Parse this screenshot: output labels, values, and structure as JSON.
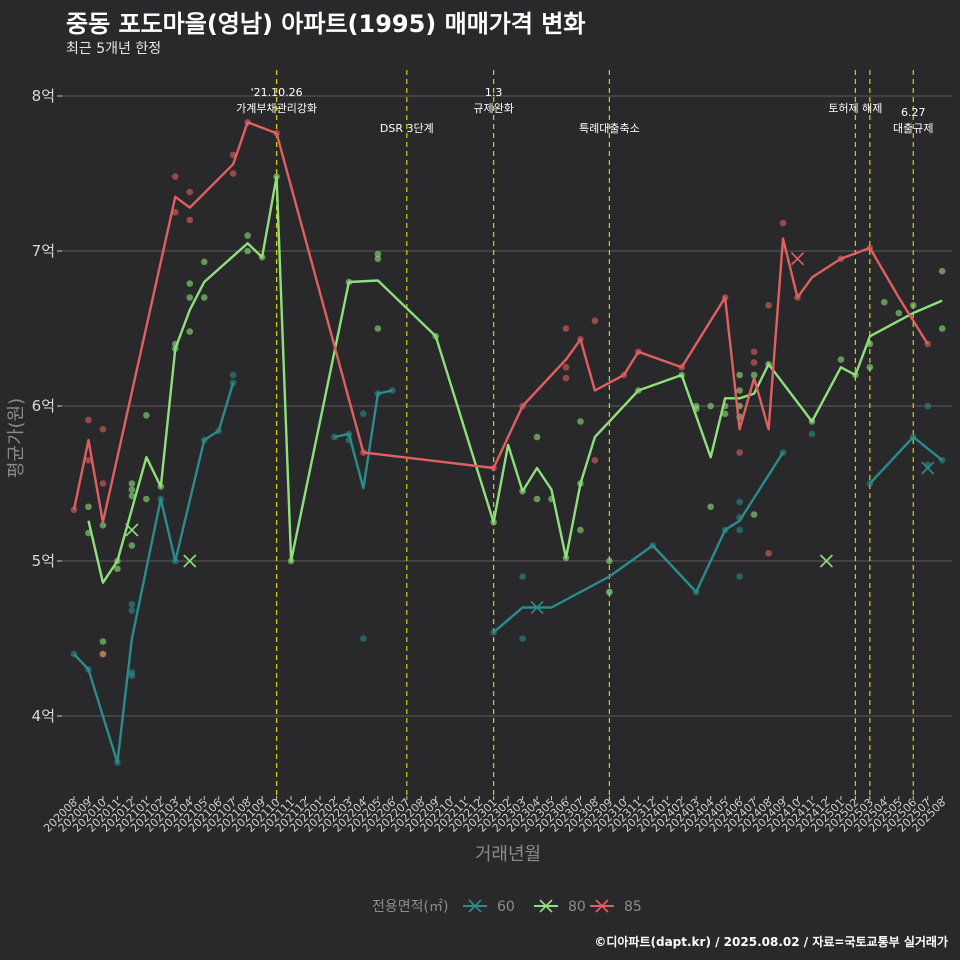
{
  "header": {
    "title": "중동 포도마을(영남) 아파트(1995) 매매가격 변화",
    "subtitle": "최근 5개년 한정"
  },
  "caption": "©디아파트(dapt.kr) / 2025.08.02 / 자료=국토교통부 실거래가",
  "colors": {
    "background": "#29292b",
    "grid": "#5a5a5a",
    "event_line": "#d4d400",
    "series_60": "#2a8c8c",
    "series_80": "#8ee07a",
    "series_85": "#e06060"
  },
  "chart_data": {
    "type": "line",
    "xlabel": "거래년월",
    "ylabel": "평균가(원)",
    "ylim": [
      3.5,
      8.1
    ],
    "y_ticks": [
      {
        "value": 4,
        "label": "4억"
      },
      {
        "value": 5,
        "label": "5억"
      },
      {
        "value": 6,
        "label": "6억"
      },
      {
        "value": 7,
        "label": "7억"
      },
      {
        "value": 8,
        "label": "8억"
      }
    ],
    "categories": [
      "202008",
      "202009",
      "202010",
      "202011",
      "202012",
      "202101",
      "202102",
      "202103",
      "202104",
      "202105",
      "202106",
      "202107",
      "202108",
      "202109",
      "202110",
      "202111",
      "202112",
      "202201",
      "202202",
      "202203",
      "202204",
      "202205",
      "202206",
      "202207",
      "202208",
      "202209",
      "202210",
      "202211",
      "202212",
      "202301",
      "202302",
      "202303",
      "202304",
      "202305",
      "202306",
      "202307",
      "202308",
      "202309",
      "202310",
      "202311",
      "202312",
      "202401",
      "202402",
      "202403",
      "202404",
      "202405",
      "202406",
      "202407",
      "202408",
      "202409",
      "202410",
      "202411",
      "202412",
      "202501",
      "202502",
      "202503",
      "202504",
      "202505",
      "202506",
      "202507",
      "202508"
    ],
    "legend_title": "전용면적(㎡)",
    "legend_position": "bottom",
    "events": [
      {
        "x": 14,
        "label_lines": [
          "'21.10.26",
          "가계부채관리강화"
        ],
        "label_row": 0
      },
      {
        "x": 23,
        "label_lines": [
          "DSR 3단계"
        ],
        "label_row": 1
      },
      {
        "x": 29,
        "label_lines": [
          "1.3",
          "규제완화"
        ],
        "label_row": 0
      },
      {
        "x": 37,
        "label_lines": [
          "특례대출축소"
        ],
        "label_row": 1
      },
      {
        "x": 54,
        "label_lines": [
          "토허제 해제"
        ],
        "label_row": 0
      },
      {
        "x": 55,
        "label_lines": [],
        "label_row": 0
      },
      {
        "x": 58,
        "label_lines": [
          "6.27",
          "대출규제"
        ],
        "label_row": 1
      }
    ],
    "series": [
      {
        "name": "60",
        "color": "#2a8c8c",
        "line": [
          [
            0,
            4.4
          ],
          [
            1,
            4.3
          ],
          [
            2,
            4.0
          ],
          [
            3,
            3.7
          ],
          [
            4,
            4.5
          ],
          [
            6,
            5.4
          ],
          [
            7,
            5.0
          ],
          [
            9,
            5.78
          ],
          [
            10,
            5.84
          ],
          [
            11,
            6.15
          ],
          [
            null,
            null
          ],
          [
            18,
            5.8
          ],
          [
            19,
            5.82
          ],
          [
            20,
            5.47
          ],
          [
            21,
            6.08
          ],
          [
            22,
            6.1
          ],
          [
            null,
            null
          ],
          [
            29,
            4.54
          ],
          [
            31,
            4.7
          ],
          [
            33,
            4.7
          ],
          [
            37,
            4.9
          ],
          [
            40,
            5.1
          ],
          [
            43,
            4.8
          ],
          [
            45,
            5.2
          ],
          [
            46,
            5.26
          ],
          [
            49,
            5.7
          ],
          [
            null,
            null
          ],
          [
            55,
            5.5
          ],
          [
            58,
            5.8
          ],
          [
            60,
            5.65
          ]
        ],
        "points": [
          [
            0,
            4.4
          ],
          [
            1,
            4.3
          ],
          [
            3,
            3.7
          ],
          [
            4,
            4.68
          ],
          [
            4,
            4.72
          ],
          [
            4,
            4.28
          ],
          [
            4,
            4.26
          ],
          [
            6,
            5.4
          ],
          [
            7,
            5.0
          ],
          [
            9,
            5.78
          ],
          [
            10,
            5.84
          ],
          [
            11,
            6.15
          ],
          [
            11,
            6.2
          ],
          [
            18,
            5.8
          ],
          [
            19,
            5.82
          ],
          [
            19,
            5.78
          ],
          [
            20,
            4.5
          ],
          [
            20,
            5.95
          ],
          [
            21,
            6.08
          ],
          [
            22,
            6.1
          ],
          [
            29,
            4.54
          ],
          [
            31,
            4.9
          ],
          [
            31,
            4.5
          ],
          [
            37,
            4.8
          ],
          [
            40,
            5.1
          ],
          [
            43,
            4.8
          ],
          [
            45,
            5.2
          ],
          [
            46,
            5.2
          ],
          [
            46,
            5.28
          ],
          [
            46,
            5.38
          ],
          [
            46,
            4.9
          ],
          [
            49,
            5.7
          ],
          [
            51,
            5.82
          ],
          [
            55,
            5.5
          ],
          [
            58,
            5.8
          ],
          [
            59,
            6.0
          ],
          [
            59,
            5.62
          ],
          [
            60,
            5.65
          ]
        ],
        "crosses": [
          [
            32,
            4.7
          ],
          [
            59,
            5.6
          ]
        ]
      },
      {
        "name": "80",
        "color": "#8ee07a",
        "line": [
          [
            1,
            5.26
          ],
          [
            2,
            4.86
          ],
          [
            3,
            5.0
          ],
          [
            5,
            5.67
          ],
          [
            6,
            5.48
          ],
          [
            7,
            6.37
          ],
          [
            8,
            6.62
          ],
          [
            9,
            6.8
          ],
          [
            12,
            7.05
          ],
          [
            13,
            6.96
          ],
          [
            14,
            7.48
          ],
          [
            15,
            5.0
          ],
          [
            19,
            6.8
          ],
          [
            21,
            6.81
          ],
          [
            25,
            6.45
          ],
          [
            29,
            5.25
          ],
          [
            30,
            5.75
          ],
          [
            31,
            5.45
          ],
          [
            32,
            5.6
          ],
          [
            33,
            5.46
          ],
          [
            34,
            5.02
          ],
          [
            35,
            5.5
          ],
          [
            36,
            5.8
          ],
          [
            39,
            6.1
          ],
          [
            42,
            6.2
          ],
          [
            44,
            5.67
          ],
          [
            45,
            6.05
          ],
          [
            46,
            6.05
          ],
          [
            47,
            6.08
          ],
          [
            48,
            6.27
          ],
          [
            51,
            5.9
          ],
          [
            53,
            6.25
          ],
          [
            54,
            6.2
          ],
          [
            55,
            6.45
          ],
          [
            58,
            6.6
          ],
          [
            60,
            6.68
          ]
        ],
        "points": [
          [
            1,
            5.35
          ],
          [
            1,
            5.18
          ],
          [
            2,
            5.23
          ],
          [
            2,
            4.48
          ],
          [
            2,
            4.4
          ],
          [
            3,
            4.95
          ],
          [
            3,
            5.0
          ],
          [
            4,
            5.5
          ],
          [
            4,
            5.46
          ],
          [
            4,
            5.42
          ],
          [
            4,
            5.1
          ],
          [
            5,
            5.4
          ],
          [
            5,
            5.94
          ],
          [
            6,
            5.48
          ],
          [
            7,
            6.4
          ],
          [
            7,
            6.37
          ],
          [
            8,
            6.7
          ],
          [
            8,
            6.48
          ],
          [
            8,
            6.79
          ],
          [
            9,
            6.93
          ],
          [
            9,
            6.7
          ],
          [
            12,
            7.1
          ],
          [
            12,
            7.0
          ],
          [
            13,
            6.96
          ],
          [
            14,
            7.48
          ],
          [
            15,
            5.0
          ],
          [
            19,
            6.8
          ],
          [
            21,
            6.98
          ],
          [
            21,
            6.95
          ],
          [
            21,
            6.5
          ],
          [
            25,
            6.45
          ],
          [
            29,
            5.25
          ],
          [
            31,
            5.45
          ],
          [
            32,
            5.8
          ],
          [
            32,
            5.4
          ],
          [
            33,
            5.4
          ],
          [
            34,
            5.02
          ],
          [
            35,
            5.5
          ],
          [
            35,
            5.9
          ],
          [
            35,
            5.2
          ],
          [
            37,
            5.0
          ],
          [
            37,
            4.8
          ],
          [
            39,
            6.1
          ],
          [
            42,
            6.2
          ],
          [
            43,
            6.0
          ],
          [
            43,
            5.98
          ],
          [
            44,
            6.0
          ],
          [
            44,
            5.35
          ],
          [
            45,
            6.0
          ],
          [
            45,
            5.95
          ],
          [
            46,
            6.2
          ],
          [
            46,
            6.0
          ],
          [
            46,
            5.93
          ],
          [
            46,
            6.1
          ],
          [
            47,
            6.2
          ],
          [
            47,
            5.3
          ],
          [
            48,
            6.27
          ],
          [
            51,
            5.9
          ],
          [
            53,
            6.3
          ],
          [
            54,
            6.2
          ],
          [
            55,
            6.4
          ],
          [
            55,
            6.25
          ],
          [
            56,
            6.67
          ],
          [
            57,
            6.6
          ],
          [
            58,
            6.65
          ],
          [
            60,
            6.87
          ],
          [
            60,
            6.5
          ]
        ],
        "crosses": [
          [
            4,
            5.2
          ],
          [
            8,
            5.0
          ],
          [
            52,
            5.0
          ]
        ]
      },
      {
        "name": "85",
        "color": "#e06060",
        "line": [
          [
            0,
            5.33
          ],
          [
            1,
            5.78
          ],
          [
            2,
            5.25
          ],
          [
            7,
            7.35
          ],
          [
            8,
            7.28
          ],
          [
            11,
            7.56
          ],
          [
            12,
            7.83
          ],
          [
            14,
            7.76
          ],
          [
            20,
            5.7
          ],
          [
            29,
            5.6
          ],
          [
            31,
            6.0
          ],
          [
            34,
            6.3
          ],
          [
            35,
            6.43
          ],
          [
            36,
            6.1
          ],
          [
            38,
            6.2
          ],
          [
            39,
            6.35
          ],
          [
            42,
            6.25
          ],
          [
            45,
            6.7
          ],
          [
            46,
            5.85
          ],
          [
            47,
            6.18
          ],
          [
            48,
            5.85
          ],
          [
            49,
            7.08
          ],
          [
            50,
            6.7
          ],
          [
            51,
            6.83
          ],
          [
            53,
            6.95
          ],
          [
            55,
            7.02
          ],
          [
            57,
            6.7
          ],
          [
            59,
            6.4
          ]
        ],
        "points": [
          [
            0,
            5.33
          ],
          [
            1,
            5.91
          ],
          [
            1,
            5.65
          ],
          [
            2,
            5.85
          ],
          [
            2,
            5.5
          ],
          [
            2,
            4.4
          ],
          [
            7,
            7.48
          ],
          [
            7,
            7.25
          ],
          [
            8,
            7.38
          ],
          [
            8,
            7.2
          ],
          [
            11,
            7.62
          ],
          [
            11,
            7.5
          ],
          [
            12,
            7.83
          ],
          [
            14,
            7.76
          ],
          [
            20,
            5.7
          ],
          [
            29,
            5.6
          ],
          [
            31,
            6.0
          ],
          [
            34,
            6.5
          ],
          [
            34,
            6.25
          ],
          [
            34,
            6.18
          ],
          [
            35,
            6.43
          ],
          [
            36,
            6.55
          ],
          [
            36,
            5.65
          ],
          [
            38,
            6.2
          ],
          [
            39,
            6.35
          ],
          [
            42,
            6.25
          ],
          [
            45,
            6.7
          ],
          [
            46,
            5.7
          ],
          [
            47,
            6.35
          ],
          [
            47,
            6.28
          ],
          [
            48,
            6.65
          ],
          [
            48,
            5.05
          ],
          [
            49,
            7.18
          ],
          [
            50,
            6.7
          ],
          [
            53,
            6.95
          ],
          [
            55,
            7.02
          ],
          [
            59,
            6.4
          ]
        ],
        "crosses": [
          [
            50,
            6.95
          ]
        ]
      }
    ]
  }
}
